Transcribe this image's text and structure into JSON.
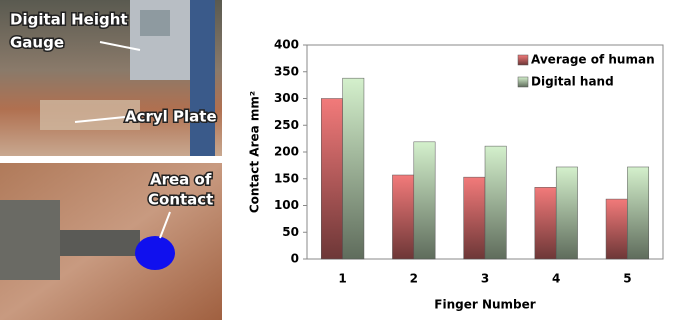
{
  "photo_labels": {
    "gauge": [
      "Digital Height",
      "Gauge"
    ],
    "plate": "Acryl Plate",
    "contact": [
      "Area of",
      "Contact"
    ]
  },
  "chart_data": {
    "type": "bar",
    "xlabel": "Finger Number",
    "ylabel": "Contact Area  mm²",
    "categories": [
      "1",
      "2",
      "3",
      "4",
      "5"
    ],
    "series": [
      {
        "name": "Average of human",
        "color": "#f27a7a",
        "values": [
          300,
          157,
          153,
          134,
          112
        ]
      },
      {
        "name": "Digital hand",
        "color": "#d4f0cc",
        "values": [
          338,
          219,
          211,
          172,
          172
        ]
      }
    ],
    "ylim": [
      0,
      400
    ],
    "yticks": [
      0,
      50,
      100,
      150,
      200,
      250,
      300,
      350,
      400
    ]
  }
}
